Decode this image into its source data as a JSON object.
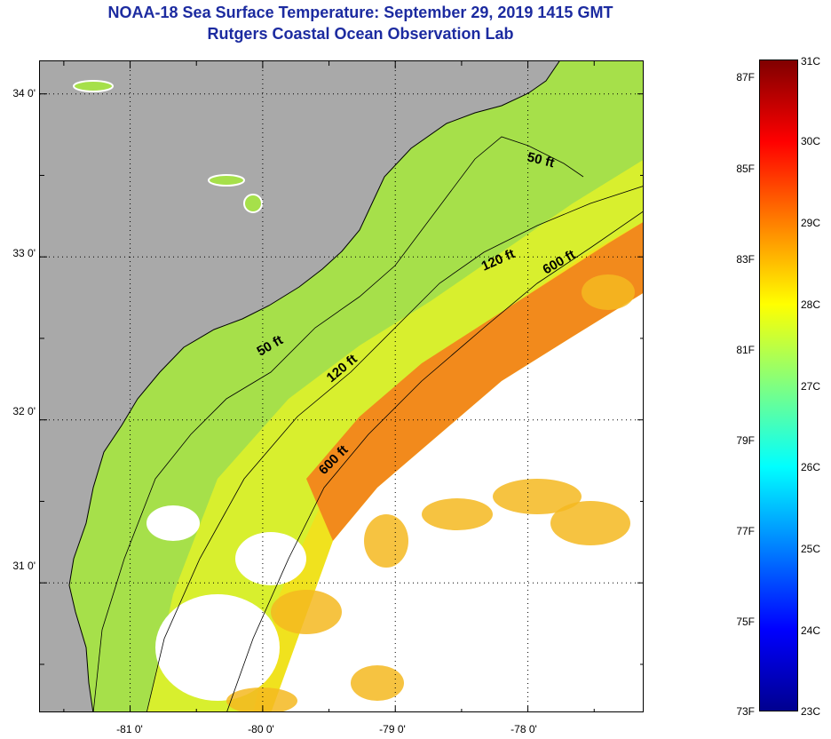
{
  "header": {
    "title": "NOAA-18 Sea Surface Temperature:  September 29, 2019 1415 GMT",
    "subtitle": "Rutgers Coastal Ocean Observation Lab"
  },
  "map": {
    "lon_range": [
      -81.68,
      -77.12
    ],
    "lat_range": [
      30.2,
      34.2
    ],
    "grid": "dotted",
    "lat_ticks": [
      {
        "value": 34,
        "label": "34 0'"
      },
      {
        "value": 33,
        "label": "33 0'"
      },
      {
        "value": 32,
        "label": "32 0'"
      },
      {
        "value": 31,
        "label": "31 0'"
      }
    ],
    "lon_ticks": [
      {
        "value": -81,
        "label": "-81 0'"
      },
      {
        "value": -80,
        "label": "-80 0'"
      },
      {
        "value": -79,
        "label": "-79 0'"
      },
      {
        "value": -78,
        "label": "-78 0'"
      }
    ],
    "isobaths": [
      {
        "label": "50 ft",
        "color": "#000000"
      },
      {
        "label": "120 ft",
        "color": "#000000"
      },
      {
        "label": "600 ft",
        "color": "#000000"
      }
    ],
    "colors": {
      "land": "#a9a9a9",
      "cloud": "#ffffff",
      "nearshore": "#a6e04a",
      "shelf": "#d8ef2e",
      "mid_shelf": "#f0e21e",
      "gulf_stream": "#f28a1c",
      "warm_patch": "#f5b820"
    }
  },
  "colorbar": {
    "min_c": 23,
    "max_c": 31,
    "colors": [
      "#00008f",
      "#0000ff",
      "#0080ff",
      "#00ffff",
      "#80ff80",
      "#ffff00",
      "#ff8000",
      "#ff0000",
      "#800000"
    ],
    "celsius_labels": [
      "31C",
      "30C",
      "29C",
      "28C",
      "27C",
      "26C",
      "25C",
      "24C",
      "23C"
    ],
    "fahrenheit_labels": [
      "87F",
      "85F",
      "83F",
      "81F",
      "79F",
      "77F",
      "75F",
      "73F"
    ]
  }
}
